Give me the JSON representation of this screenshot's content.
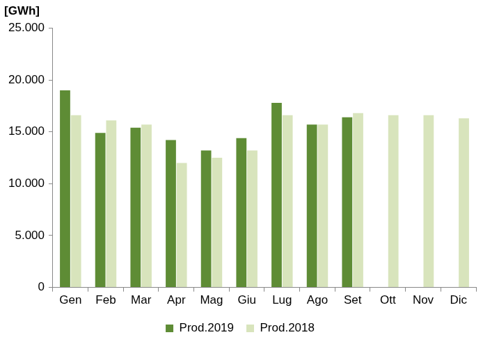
{
  "chart_data": {
    "type": "bar",
    "y_label": "[GWh]",
    "categories": [
      "Gen",
      "Feb",
      "Mar",
      "Apr",
      "Mag",
      "Giu",
      "Lug",
      "Ago",
      "Set",
      "Ott",
      "Nov",
      "Dic"
    ],
    "series": [
      {
        "name": "Prod.2019",
        "color": "#5e8c35",
        "values": [
          19000,
          14900,
          15400,
          14200,
          13200,
          14400,
          17800,
          15700,
          16400,
          null,
          null,
          null
        ]
      },
      {
        "name": "Prod.2018",
        "color": "#d8e4bc",
        "values": [
          16600,
          16100,
          15700,
          12000,
          12500,
          13200,
          16600,
          15700,
          16800,
          16600,
          16600,
          16300
        ]
      }
    ],
    "ylim": [
      0,
      25000
    ],
    "yticks": [
      0,
      {
        "value": 5000,
        "label": "5.000"
      },
      {
        "value": 10000,
        "label": "10.000"
      },
      {
        "value": 15000,
        "label": "15.000"
      },
      {
        "value": 20000,
        "label": "20.000"
      },
      {
        "value": 25000,
        "label": "25.000"
      }
    ],
    "grid": false,
    "legend": "bottom"
  }
}
